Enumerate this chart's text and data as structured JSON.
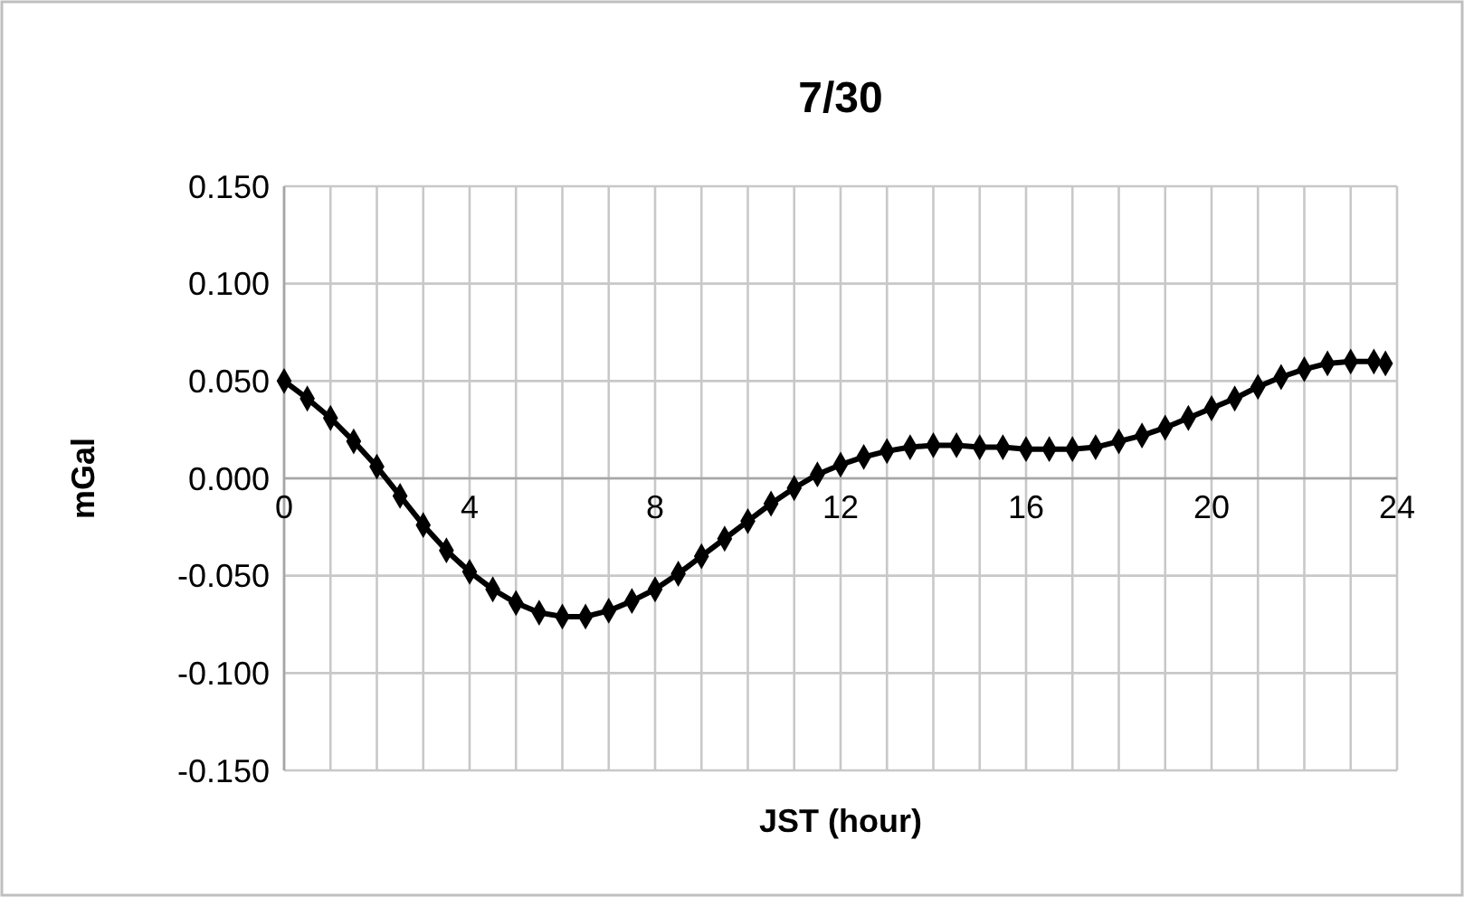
{
  "chart_data": {
    "type": "line",
    "title": "7/30",
    "xlabel": "JST (hour)",
    "ylabel": "mGal",
    "x": [
      0,
      0.5,
      1,
      1.5,
      2,
      2.5,
      3,
      3.5,
      4,
      4.5,
      5,
      5.5,
      6,
      6.5,
      7,
      7.5,
      8,
      8.5,
      9,
      9.5,
      10,
      10.5,
      11,
      11.5,
      12,
      12.5,
      13,
      13.5,
      14,
      14.5,
      15,
      15.5,
      16,
      16.5,
      17,
      17.5,
      18,
      18.5,
      19,
      19.5,
      20,
      20.5,
      21,
      21.5,
      22,
      22.5,
      23,
      23.5,
      23.75
    ],
    "series": [
      {
        "color": "#000000",
        "values": [
          0.05,
          0.041,
          0.031,
          0.019,
          0.006,
          -0.009,
          -0.024,
          -0.037,
          -0.048,
          -0.057,
          -0.064,
          -0.069,
          -0.071,
          -0.071,
          -0.068,
          -0.063,
          -0.057,
          -0.049,
          -0.04,
          -0.031,
          -0.022,
          -0.013,
          -0.005,
          0.002,
          0.007,
          0.011,
          0.014,
          0.016,
          0.017,
          0.017,
          0.016,
          0.016,
          0.015,
          0.015,
          0.015,
          0.016,
          0.019,
          0.022,
          0.026,
          0.031,
          0.036,
          0.041,
          0.047,
          0.052,
          0.056,
          0.059,
          0.06,
          0.06,
          0.059
        ]
      }
    ],
    "xlim": [
      0,
      24
    ],
    "xticks": [
      0,
      {
        "value": 1,
        "label": null
      },
      {
        "value": 2,
        "label": null
      },
      {
        "value": 3,
        "label": null
      },
      4,
      {
        "value": 5,
        "label": null
      },
      {
        "value": 6,
        "label": null
      },
      {
        "value": 7,
        "label": null
      },
      8,
      {
        "value": 9,
        "label": null
      },
      {
        "value": 10,
        "label": null
      },
      {
        "value": 11,
        "label": null
      },
      12,
      {
        "value": 13,
        "label": null
      },
      {
        "value": 14,
        "label": null
      },
      {
        "value": 15,
        "label": null
      },
      16,
      {
        "value": 17,
        "label": null
      },
      {
        "value": 18,
        "label": null
      },
      {
        "value": 19,
        "label": null
      },
      20,
      {
        "value": 21,
        "label": null
      },
      {
        "value": 22,
        "label": null
      },
      {
        "value": 23,
        "label": null
      },
      24
    ],
    "ylim": [
      -0.15,
      0.15
    ],
    "yticks": [
      {
        "value": -0.15,
        "label": "-0.150"
      },
      {
        "value": -0.1,
        "label": "-0.100"
      },
      {
        "value": -0.05,
        "label": "-0.050"
      },
      {
        "value": 0,
        "label": "0.000"
      },
      {
        "value": 0.05,
        "label": "0.050"
      },
      {
        "value": 0.1,
        "label": "0.100"
      },
      {
        "value": 0.15,
        "label": "0.150"
      }
    ],
    "grid": true,
    "marker": "diamond",
    "line_style": "solid"
  }
}
